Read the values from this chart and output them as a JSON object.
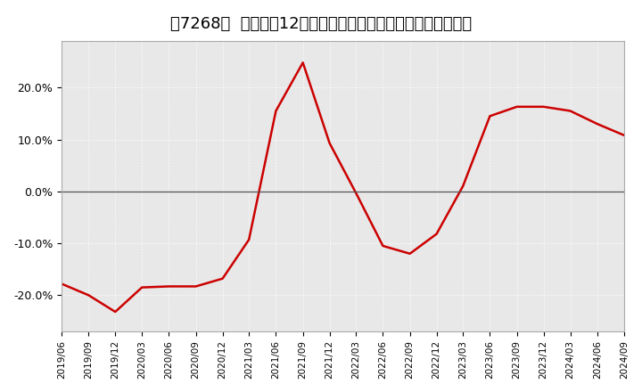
{
  "title": "［7268］  売上高の12か月移動合計の対前年同期増減率の推移",
  "line_color": "#cc0000",
  "background_color": "#ffffff",
  "plot_bg_color": "#e8e8e8",
  "grid_color": "#ffffff",
  "dates": [
    "2019/06",
    "2019/09",
    "2019/12",
    "2020/03",
    "2020/06",
    "2020/09",
    "2020/12",
    "2021/03",
    "2021/06",
    "2021/09",
    "2021/12",
    "2022/03",
    "2022/06",
    "2022/09",
    "2022/12",
    "2023/03",
    "2023/06",
    "2023/09",
    "2023/12",
    "2024/03",
    "2024/06",
    "2024/09"
  ],
  "values": [
    -0.178,
    -0.2,
    -0.232,
    -0.185,
    -0.183,
    -0.183,
    -0.168,
    -0.093,
    0.155,
    0.248,
    0.093,
    -0.003,
    -0.105,
    -0.12,
    -0.082,
    0.01,
    0.145,
    0.163,
    0.163,
    0.155,
    0.13,
    0.108
  ],
  "yticks": [
    -0.2,
    -0.1,
    0.0,
    0.1,
    0.2
  ],
  "ylim": [
    -0.27,
    0.29
  ],
  "zero_line_color": "#555555",
  "title_fontsize": 13
}
